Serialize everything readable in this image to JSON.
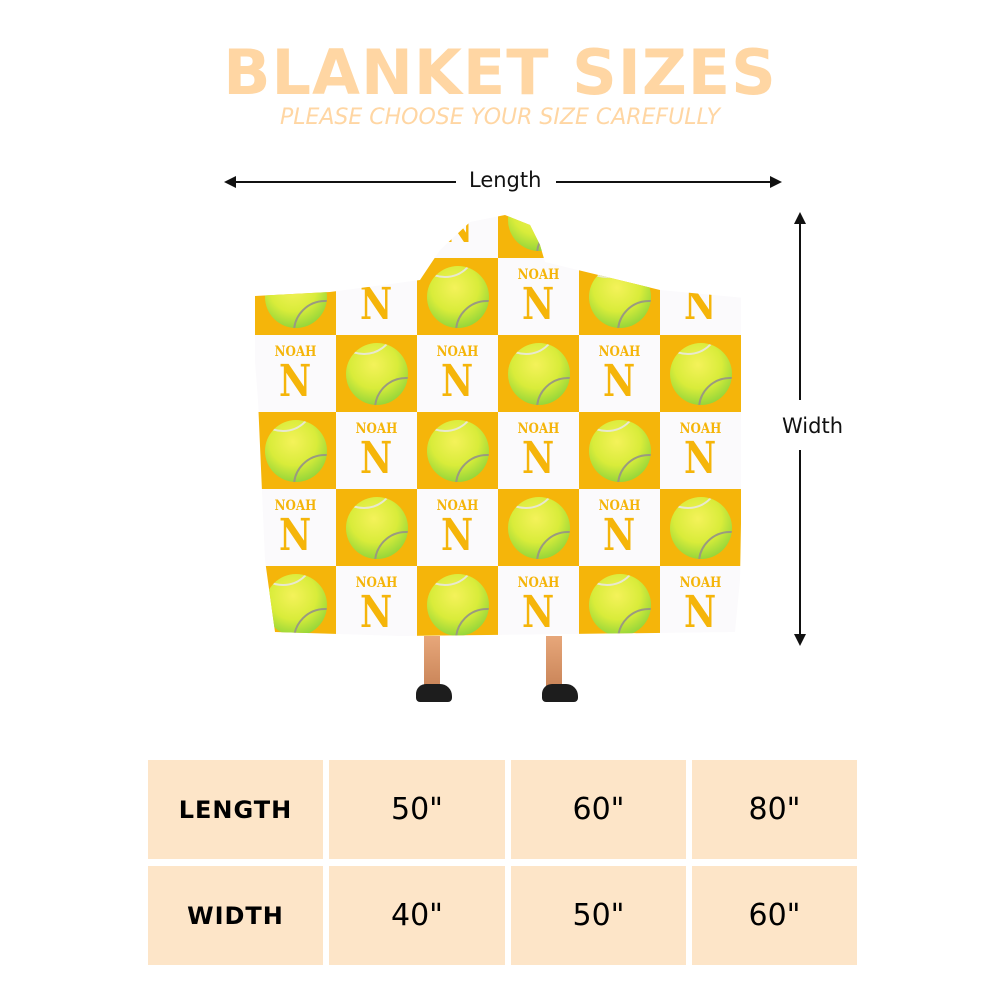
{
  "header": {
    "title": "BLANKET SIZES",
    "subtitle": "PLEASE CHOOSE YOUR SIZE CAREFULLY"
  },
  "dimensions": {
    "length_label": "Length",
    "width_label": "Width"
  },
  "blanket": {
    "name": "NOAH",
    "initial": "N",
    "colors": {
      "orange": "#f5b50a",
      "white": "#fbfafc",
      "ball": "#d9ec3a"
    }
  },
  "size_table": {
    "rows": [
      {
        "label": "LENGTH",
        "values": [
          "50\"",
          "60\"",
          "80\""
        ]
      },
      {
        "label": "WIDTH",
        "values": [
          "40\"",
          "50\"",
          "60\""
        ]
      }
    ],
    "cell_color": "#fde5c8"
  },
  "colors": {
    "title": "#ffd6a3"
  }
}
